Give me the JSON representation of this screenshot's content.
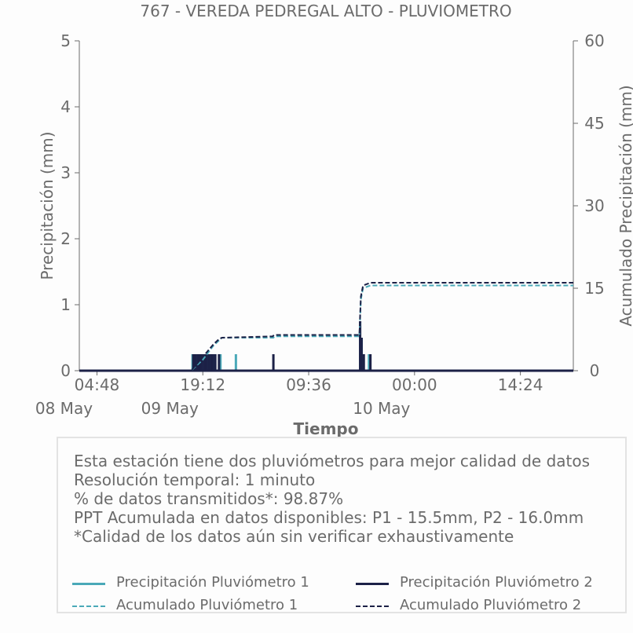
{
  "chart_data": {
    "type": "line",
    "title": "767 - VEREDA PEDREGAL ALTO - PLUVIOMETRO",
    "xlabel": "Tiempo",
    "ylabel_left": "Precipitación (mm)",
    "ylabel_right": "Acumulado Precipitación (mm)",
    "ylim_left": [
      0,
      5
    ],
    "ylim_right": [
      0,
      60
    ],
    "yticks_left": [
      "0",
      "1",
      "2",
      "3",
      "4",
      "5"
    ],
    "yticks_right": [
      "0",
      "15",
      "30",
      "45",
      "60"
    ],
    "xticks": [
      {
        "time": "04:48",
        "date": "08 May",
        "hours": 4.8
      },
      {
        "time": "19:12",
        "date": "09 May",
        "hours": 19.2
      },
      {
        "time": "09:36",
        "date": "",
        "hours": 33.6
      },
      {
        "time": "00:00",
        "date": "10 May",
        "hours": 48.0
      },
      {
        "time": "14:24",
        "date": "",
        "hours": 62.4
      }
    ],
    "xlim_hours": [
      2.4,
      69.6
    ],
    "series": [
      {
        "name": "Precipitación Pluviómetro 1",
        "color": "#4aa9b8",
        "style": "solid",
        "axis": "left",
        "points": [
          [
            17.8,
            0.25
          ],
          [
            18.1,
            0.25
          ],
          [
            18.4,
            0.25
          ],
          [
            18.7,
            0.25
          ],
          [
            19.0,
            0.25
          ],
          [
            19.3,
            0.25
          ],
          [
            19.6,
            0.25
          ],
          [
            19.9,
            0.25
          ],
          [
            20.2,
            0.25
          ],
          [
            20.5,
            0.25
          ],
          [
            20.8,
            0.25
          ],
          [
            21.6,
            0.25
          ],
          [
            23.7,
            0.25
          ],
          [
            40.6,
            0.75
          ],
          [
            40.8,
            0.5
          ],
          [
            41.0,
            0.25
          ],
          [
            41.8,
            0.25
          ]
        ]
      },
      {
        "name": "Precipitación Pluviómetro 2",
        "color": "#1c2147",
        "style": "solid",
        "axis": "left",
        "points": [
          [
            17.9,
            0.25
          ],
          [
            18.2,
            0.25
          ],
          [
            18.5,
            0.25
          ],
          [
            18.8,
            0.25
          ],
          [
            19.1,
            0.25
          ],
          [
            19.4,
            0.25
          ],
          [
            19.7,
            0.25
          ],
          [
            20.0,
            0.25
          ],
          [
            20.3,
            0.25
          ],
          [
            20.6,
            0.25
          ],
          [
            20.9,
            0.25
          ],
          [
            21.4,
            0.25
          ],
          [
            28.8,
            0.25
          ],
          [
            40.6,
            0.75
          ],
          [
            40.8,
            0.5
          ],
          [
            41.1,
            0.25
          ],
          [
            42.0,
            0.25
          ]
        ]
      },
      {
        "name": "Acumulado Pluviómetro 1",
        "color": "#4aa9b8",
        "style": "dashed",
        "axis": "right",
        "points": [
          [
            2.4,
            0
          ],
          [
            17.6,
            0
          ],
          [
            19.2,
            2.0
          ],
          [
            20.6,
            4.5
          ],
          [
            21.4,
            5.5
          ],
          [
            21.8,
            6.0
          ],
          [
            23.7,
            6.0
          ],
          [
            28.8,
            6.0
          ],
          [
            29.0,
            6.25
          ],
          [
            40.5,
            6.25
          ],
          [
            40.7,
            13.0
          ],
          [
            41.0,
            15.0
          ],
          [
            42.0,
            15.5
          ],
          [
            69.6,
            15.5
          ]
        ]
      },
      {
        "name": "Acumulado Pluviómetro 2",
        "color": "#1c2147",
        "style": "dashed",
        "axis": "right",
        "points": [
          [
            2.4,
            0
          ],
          [
            17.6,
            0
          ],
          [
            19.2,
            2.5
          ],
          [
            20.6,
            4.75
          ],
          [
            21.4,
            5.75
          ],
          [
            21.8,
            6.0
          ],
          [
            28.7,
            6.25
          ],
          [
            28.9,
            6.5
          ],
          [
            40.5,
            6.5
          ],
          [
            40.7,
            13.5
          ],
          [
            41.0,
            15.5
          ],
          [
            42.0,
            16.0
          ],
          [
            69.6,
            16.0
          ]
        ]
      }
    ]
  },
  "info": {
    "lines": [
      "Esta estación tiene dos pluviómetros para mejor calidad de datos",
      "Resolución temporal: 1 minuto",
      "% de datos transmitidos*: 98.87%",
      "PPT Acumulada en datos disponibles: P1 - 15.5mm, P2 - 16.0mm",
      "*Calidad de los datos aún sin verificar exhaustivamente"
    ]
  },
  "legend": {
    "items": [
      {
        "label": "Precipitación Pluviómetro 1",
        "color": "#4aa9b8",
        "style": "solid"
      },
      {
        "label": "Precipitación Pluviómetro 2",
        "color": "#1c2147",
        "style": "solid"
      },
      {
        "label": "Acumulado Pluviómetro 1",
        "color": "#4aa9b8",
        "style": "dashed"
      },
      {
        "label": "Acumulado Pluviómetro 2",
        "color": "#1c2147",
        "style": "dashed"
      }
    ]
  }
}
